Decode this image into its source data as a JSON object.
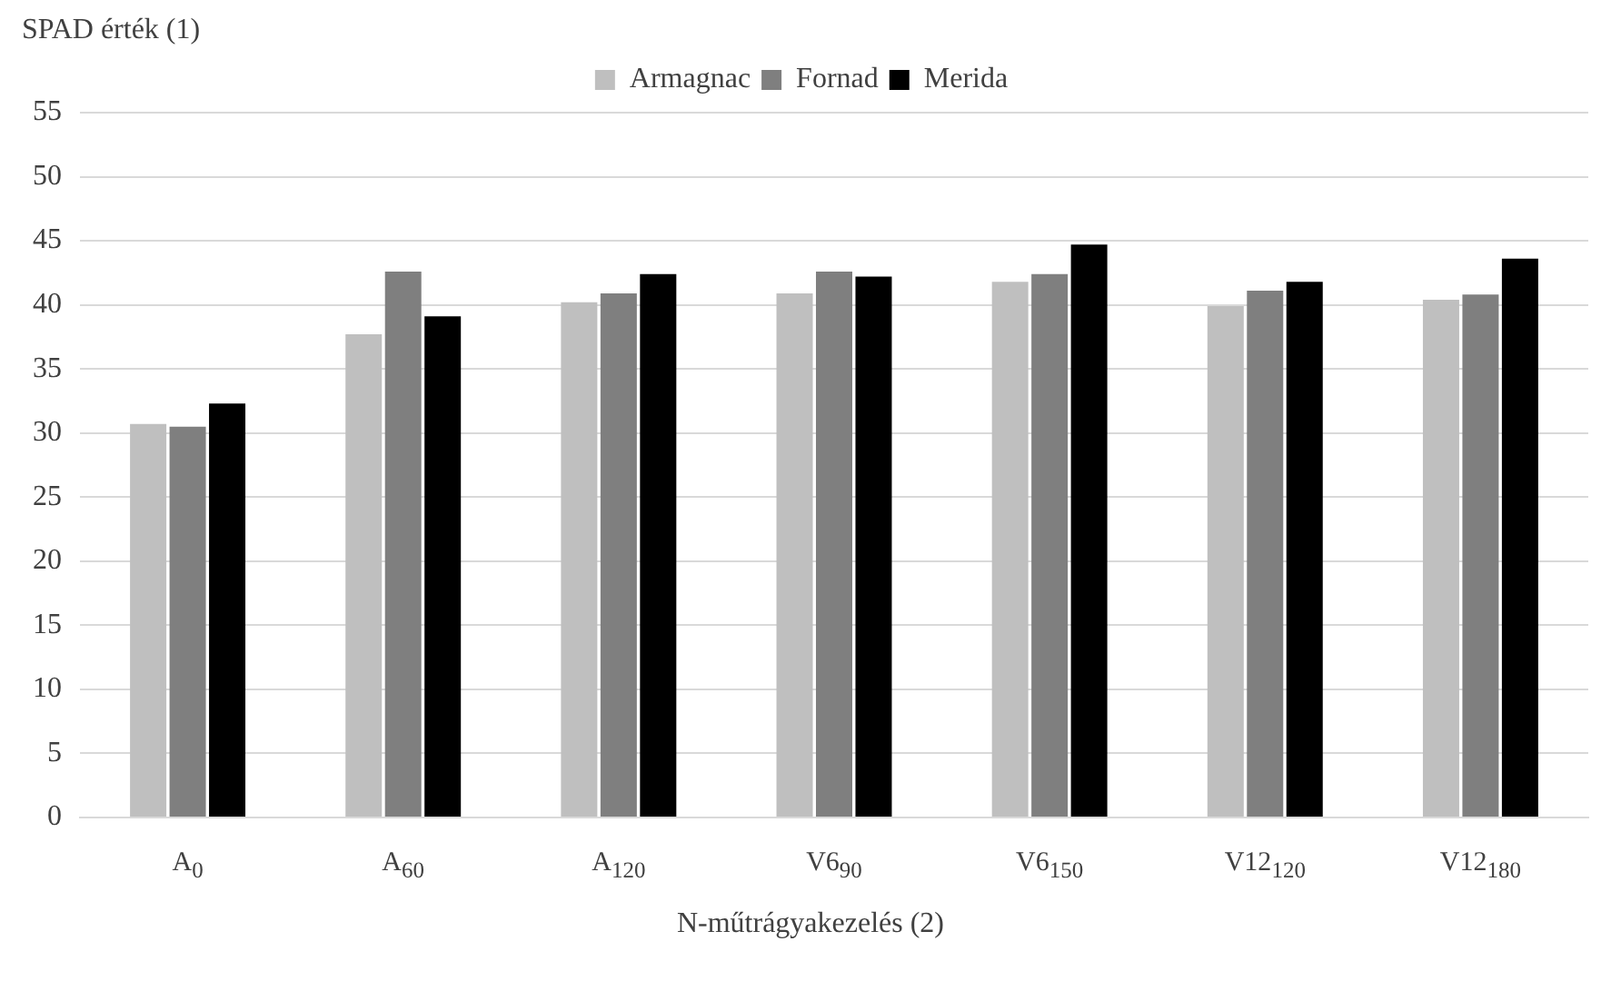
{
  "chart_data": {
    "type": "bar",
    "ylabel": "SPAD érték (1)",
    "xlabel": "N-műtrágyakezelés (2)",
    "categories": [
      "A$_{0}$",
      "A$_{60}$",
      "A$_{120}$",
      "V6$_{90}$",
      "V6$_{150}$",
      "V12$_{120}$",
      "V12$_{180}$"
    ],
    "series": [
      {
        "name": "Armagnac",
        "color": "#bfbfbf",
        "values": [
          30.7,
          37.7,
          40.2,
          40.9,
          41.8,
          39.9,
          40.4
        ]
      },
      {
        "name": "Fornad",
        "color": "#7f7f7f",
        "values": [
          30.5,
          42.6,
          40.9,
          42.6,
          42.4,
          41.1,
          40.8
        ]
      },
      {
        "name": "Merida",
        "color": "#000000",
        "values": [
          32.3,
          39.1,
          42.4,
          42.2,
          44.7,
          41.8,
          43.6
        ]
      }
    ],
    "ylim": [
      0,
      55
    ],
    "yticks": [
      0,
      5,
      10,
      15,
      20,
      25,
      30,
      35,
      40,
      45,
      50,
      55
    ],
    "grid": "y",
    "legend": "top"
  }
}
